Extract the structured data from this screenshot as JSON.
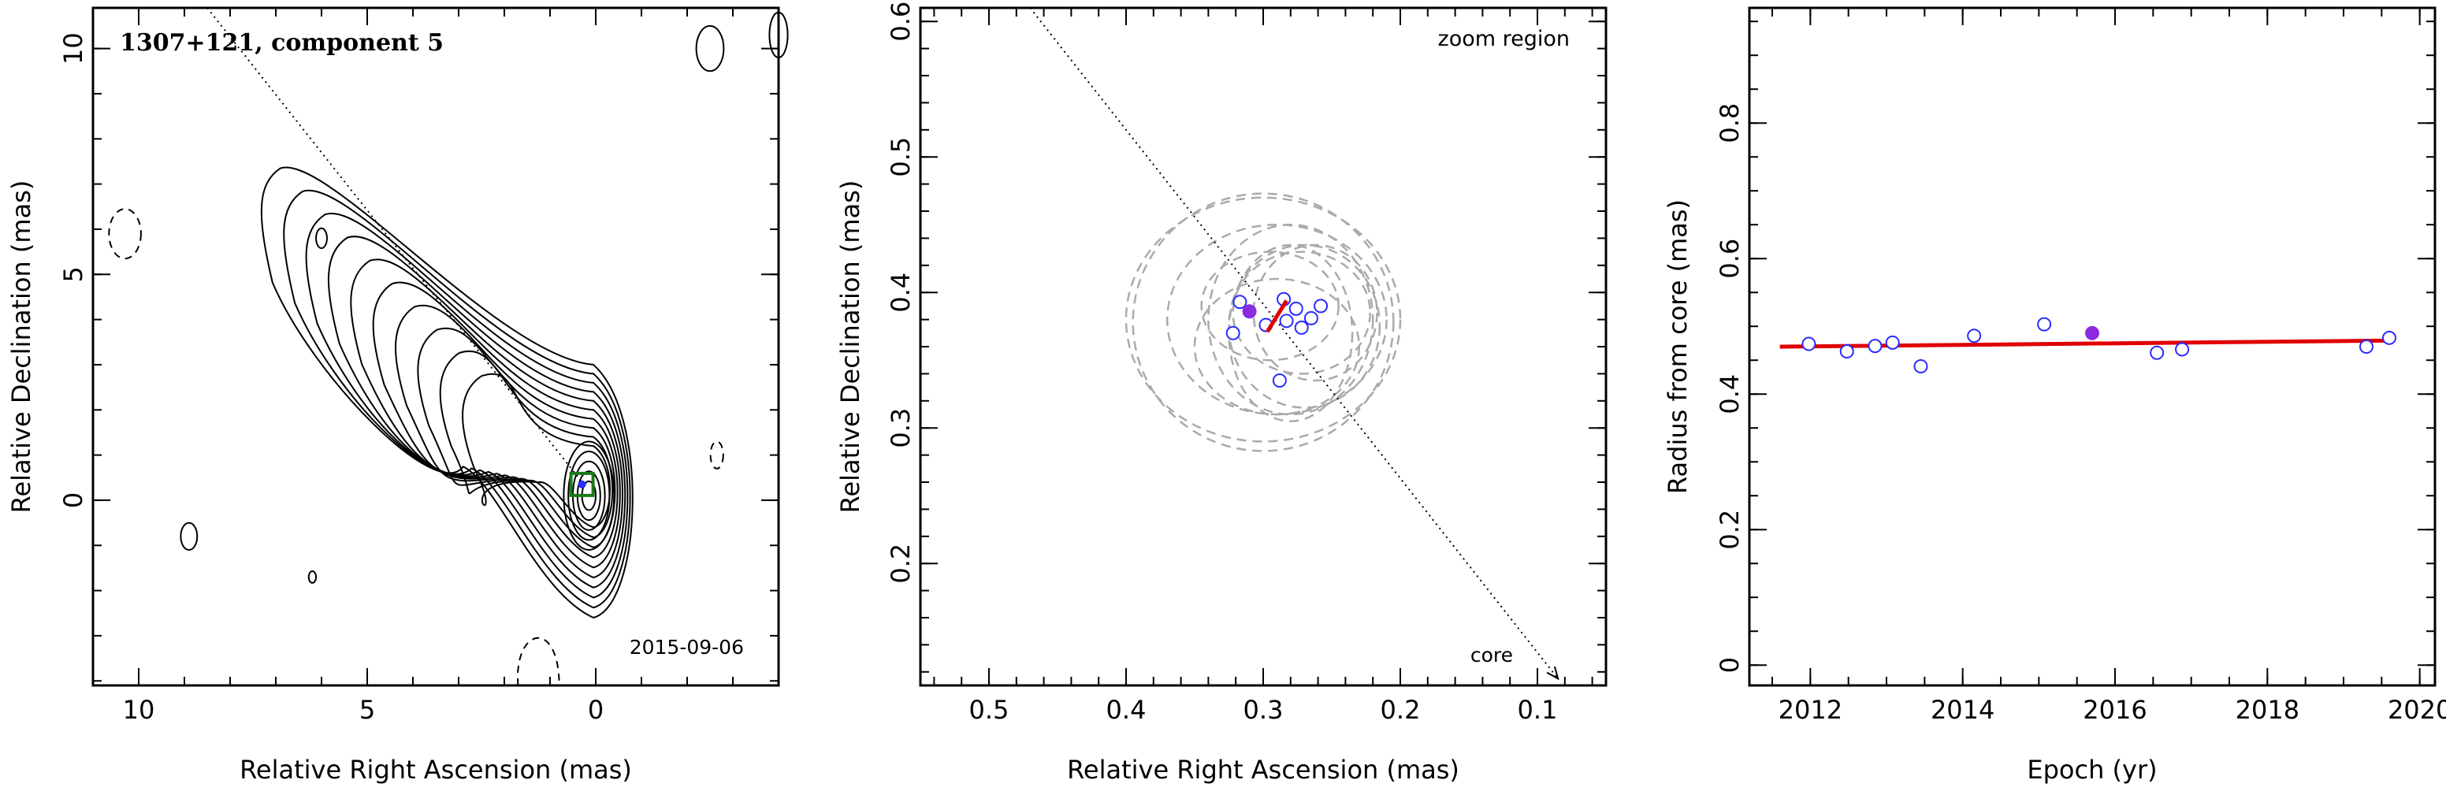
{
  "colors": {
    "axis": "#000000",
    "fit_line": "#e00000",
    "open_point": "#2a2aff",
    "filled_point": "#8a2be2",
    "ellipse": "#aaaaaa",
    "box": "#1a7a1a"
  },
  "chart_data": [
    {
      "type": "contour",
      "title": "1307+121, component 5",
      "annotation": "2015-09-06",
      "xlabel": "Relative Right Ascension (mas)",
      "ylabel": "Relative Declination (mas)",
      "xlim": [
        11,
        -4
      ],
      "ylim": [
        -4.1,
        10.9
      ],
      "xticks": [
        10,
        5,
        0
      ],
      "yticks": [
        0,
        5,
        10
      ],
      "grid": false,
      "contour_levels_drawn": 10,
      "negative_contours": "dashed",
      "jet_axis": {
        "from": [
          8.5,
          10.9
        ],
        "to": [
          0.3,
          0.4
        ],
        "style": "dotted"
      },
      "component_marker": {
        "x": 0.3,
        "y": 0.35,
        "shape": "square",
        "color": "green"
      }
    },
    {
      "type": "scatter",
      "title": "",
      "annotation": "zoom region",
      "xlabel": "Relative Right Ascension (mas)",
      "ylabel": "Relative Declination (mas)",
      "xlim": [
        0.55,
        0.05
      ],
      "ylim": [
        0.11,
        0.61
      ],
      "xticks": [
        0.5,
        0.4,
        0.3,
        0.2,
        0.1
      ],
      "yticks": [
        0.2,
        0.3,
        0.4,
        0.5,
        0.6
      ],
      "grid": false,
      "core_label": "core",
      "core_arrow": {
        "from": [
          0.47,
          0.61
        ],
        "to": [
          0.085,
          0.115
        ]
      },
      "filled_point": {
        "x": 0.31,
        "y": 0.386
      },
      "open_points": [
        {
          "x": 0.317,
          "y": 0.393
        },
        {
          "x": 0.322,
          "y": 0.37
        },
        {
          "x": 0.298,
          "y": 0.376
        },
        {
          "x": 0.285,
          "y": 0.395
        },
        {
          "x": 0.283,
          "y": 0.379
        },
        {
          "x": 0.276,
          "y": 0.388
        },
        {
          "x": 0.272,
          "y": 0.374
        },
        {
          "x": 0.265,
          "y": 0.381
        },
        {
          "x": 0.258,
          "y": 0.39
        },
        {
          "x": 0.288,
          "y": 0.335
        }
      ],
      "motion_vector": {
        "from": [
          0.297,
          0.371
        ],
        "to": [
          0.283,
          0.394
        ]
      },
      "position_ellipses": [
        {
          "cx": 0.3,
          "cy": 0.38,
          "rx": 0.1,
          "ry": 0.09
        },
        {
          "cx": 0.3,
          "cy": 0.378,
          "rx": 0.095,
          "ry": 0.095
        },
        {
          "cx": 0.29,
          "cy": 0.38,
          "rx": 0.08,
          "ry": 0.07
        },
        {
          "cx": 0.28,
          "cy": 0.38,
          "rx": 0.06,
          "ry": 0.07
        },
        {
          "cx": 0.272,
          "cy": 0.385,
          "rx": 0.05,
          "ry": 0.045
        },
        {
          "cx": 0.262,
          "cy": 0.385,
          "rx": 0.045,
          "ry": 0.05
        },
        {
          "cx": 0.27,
          "cy": 0.375,
          "rx": 0.055,
          "ry": 0.06
        },
        {
          "cx": 0.28,
          "cy": 0.37,
          "rx": 0.045,
          "ry": 0.065
        },
        {
          "cx": 0.29,
          "cy": 0.36,
          "rx": 0.06,
          "ry": 0.05
        },
        {
          "cx": 0.295,
          "cy": 0.39,
          "rx": 0.05,
          "ry": 0.04
        }
      ]
    },
    {
      "type": "scatter",
      "title": "",
      "xlabel": "Epoch (yr)",
      "ylabel": "Radius from core (mas)",
      "xlim": [
        2011.2,
        2020.2
      ],
      "ylim": [
        -0.03,
        0.97
      ],
      "xticks": [
        2012,
        2014,
        2016,
        2018,
        2020
      ],
      "yticks": [
        0,
        0.2,
        0.4,
        0.6,
        0.8
      ],
      "grid": false,
      "fit_line": {
        "x": [
          2011.6,
          2019.65
        ],
        "y": [
          0.47,
          0.479
        ]
      },
      "filled_point": {
        "x": 2015.7,
        "y": 0.49
      },
      "open_points": [
        {
          "x": 2011.98,
          "y": 0.474
        },
        {
          "x": 2012.48,
          "y": 0.463
        },
        {
          "x": 2012.85,
          "y": 0.471
        },
        {
          "x": 2013.08,
          "y": 0.476
        },
        {
          "x": 2013.45,
          "y": 0.441
        },
        {
          "x": 2014.15,
          "y": 0.486
        },
        {
          "x": 2015.07,
          "y": 0.503
        },
        {
          "x": 2016.55,
          "y": 0.461
        },
        {
          "x": 2016.88,
          "y": 0.466
        },
        {
          "x": 2019.3,
          "y": 0.47
        },
        {
          "x": 2019.6,
          "y": 0.483
        }
      ]
    }
  ]
}
